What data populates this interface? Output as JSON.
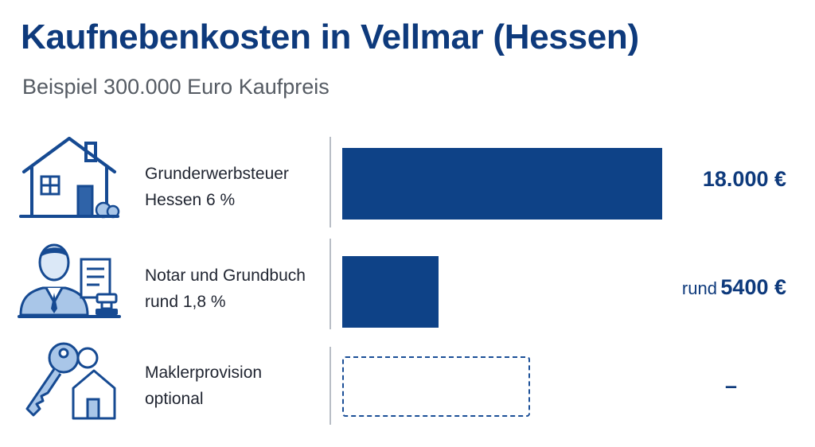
{
  "title": "Kaufnebenkosten in Vellmar (Hessen)",
  "subtitle": "Beispiel 300.000 Euro Kaufpreis",
  "colors": {
    "accent": "#0e3a7c",
    "bar": "#0e4287",
    "icon_fill": "#a9c6e8"
  },
  "icons": [
    "house-icon",
    "notary-icon",
    "keys-icon"
  ],
  "chart_data": {
    "type": "bar",
    "orientation": "horizontal",
    "title": "Kaufnebenkosten in Vellmar (Hessen)",
    "subtitle": "Beispiel 300.000 Euro Kaufpreis",
    "categories": [
      "Grunderwerbsteuer Hessen 6 %",
      "Notar und Grundbuch rund 1,8 %",
      "Maklerprovision optional"
    ],
    "values": [
      18000,
      5400,
      null
    ],
    "unit": "€",
    "xlim": [
      0,
      18000
    ]
  },
  "rows": [
    {
      "line1": "Grunderwerbsteuer",
      "line2": "Hessen 6 %",
      "value_prefix": "",
      "value_text": "18.000 €"
    },
    {
      "line1": "Notar und Grundbuch",
      "line2": "rund 1,8 %",
      "value_prefix": "rund",
      "value_text": "5400 €"
    },
    {
      "line1": "Maklerprovision",
      "line2": "optional",
      "value_prefix": "",
      "value_text": "–"
    }
  ]
}
